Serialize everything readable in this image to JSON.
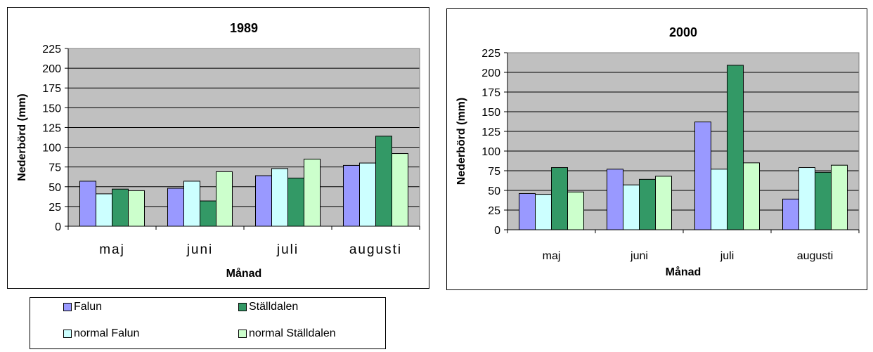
{
  "colors": {
    "plot_bg": "#c0c0c0",
    "Falun": "#9999ff",
    "Ställdalen": "#339966",
    "normal Falun": "#ccffff",
    "normal Ställdalen": "#ccffcc"
  },
  "chart_data": [
    {
      "type": "bar",
      "title": "1989",
      "xlabel": "Månad",
      "ylabel": "Nederbörd (mm)",
      "ylim": [
        0,
        225
      ],
      "yticks": [
        0,
        25,
        50,
        75,
        100,
        125,
        150,
        175,
        200,
        225
      ],
      "grid": true,
      "categories": [
        "maj",
        "juni",
        "juli",
        "augusti"
      ],
      "series": [
        {
          "name": "Falun",
          "values": [
            57,
            48,
            64,
            77
          ]
        },
        {
          "name": "normal Falun",
          "values": [
            41,
            57,
            73,
            80
          ]
        },
        {
          "name": "Ställdalen",
          "values": [
            47,
            32,
            61,
            114
          ]
        },
        {
          "name": "normal Ställdalen",
          "values": [
            45,
            69,
            85,
            92
          ]
        }
      ]
    },
    {
      "type": "bar",
      "title": "2000",
      "xlabel": "Månad",
      "ylabel": "Nederbörd (mm)",
      "ylim": [
        0,
        225
      ],
      "yticks": [
        0,
        25,
        50,
        75,
        100,
        125,
        150,
        175,
        200,
        225
      ],
      "grid": true,
      "categories": [
        "maj",
        "juni",
        "juli",
        "augusti"
      ],
      "series": [
        {
          "name": "Falun",
          "values": [
            46,
            77,
            137,
            39
          ]
        },
        {
          "name": "normal Falun",
          "values": [
            45,
            57,
            77,
            79
          ]
        },
        {
          "name": "Ställdalen",
          "values": [
            79,
            64,
            209,
            73
          ]
        },
        {
          "name": "normal Ställdalen",
          "values": [
            48,
            68,
            85,
            82
          ]
        }
      ]
    }
  ],
  "legend": {
    "placement": "bottom-left",
    "items": [
      {
        "label": "Falun"
      },
      {
        "label": "Ställdalen"
      },
      {
        "label": "normal Falun"
      },
      {
        "label": "normal Ställdalen"
      }
    ]
  }
}
